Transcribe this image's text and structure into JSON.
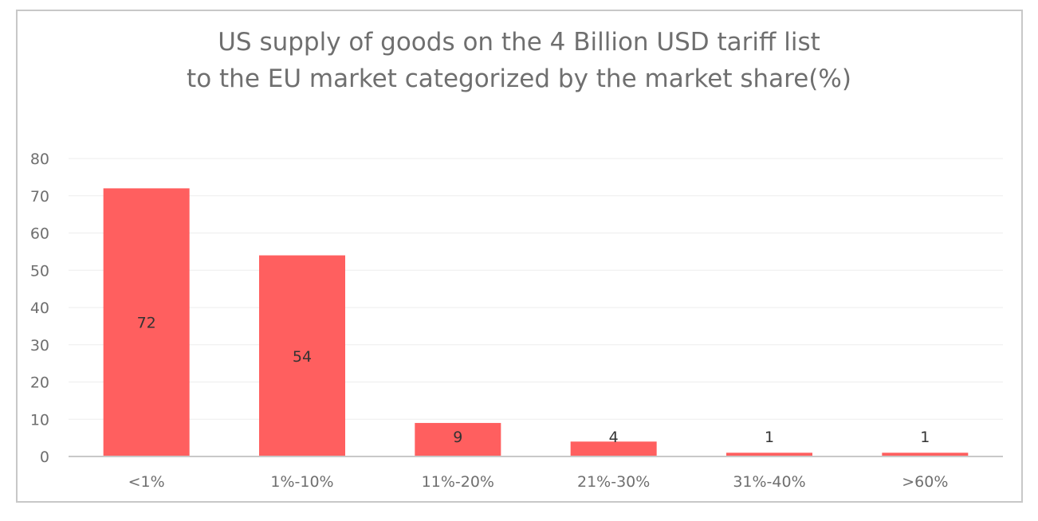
{
  "chart_data": {
    "type": "bar",
    "title_lines": [
      "US supply of goods on the 4 Billion USD tariff list",
      "to the EU market categorized by the market share(%)"
    ],
    "categories": [
      "<1%",
      "1%-10%",
      "11%-20%",
      "21%-30%",
      "31%-40%",
      ">60%"
    ],
    "values": [
      72,
      54,
      9,
      4,
      1,
      1
    ],
    "ylim": [
      0,
      80
    ],
    "yticks": [
      0,
      10,
      20,
      30,
      40,
      50,
      60,
      70,
      80
    ],
    "xlabel": "",
    "ylabel": "",
    "grid": true,
    "legend": "none",
    "bar_color": "#ff5f5f",
    "data_labels": true
  }
}
